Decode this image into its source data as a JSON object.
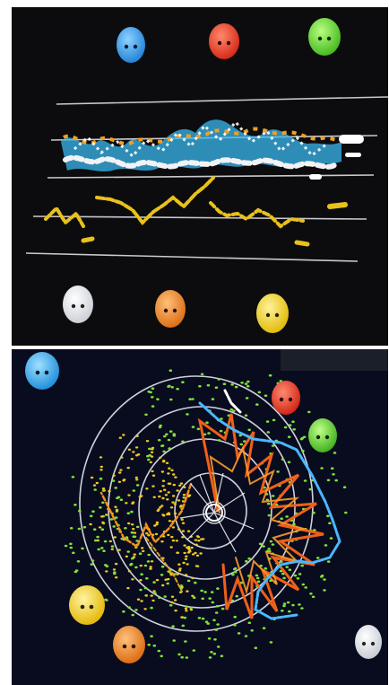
{
  "figure": {
    "top_panel": {
      "name": "circular-plot",
      "eggs": [
        {
          "name": "blue-egg",
          "color": "#3aa4f0"
        },
        {
          "name": "red-egg",
          "color": "#f0402a"
        },
        {
          "name": "green-egg",
          "color": "#63d82f"
        },
        {
          "name": "white-egg",
          "color": "#f2f2f2"
        },
        {
          "name": "orange-egg",
          "color": "#f08a2a"
        },
        {
          "name": "yellow-egg",
          "color": "#f3d323"
        }
      ]
    },
    "bottom_panel": {
      "name": "radial-plot",
      "eggs": [
        {
          "name": "blue-egg",
          "color": "#33b2f2"
        },
        {
          "name": "red-egg",
          "color": "#f23a26"
        },
        {
          "name": "green-egg",
          "color": "#5dd12c"
        },
        {
          "name": "yellow-egg",
          "color": "#f5d52a"
        },
        {
          "name": "orange-egg",
          "color": "#f08a24"
        },
        {
          "name": "white-egg",
          "color": "#f5f5f5"
        }
      ]
    }
  }
}
